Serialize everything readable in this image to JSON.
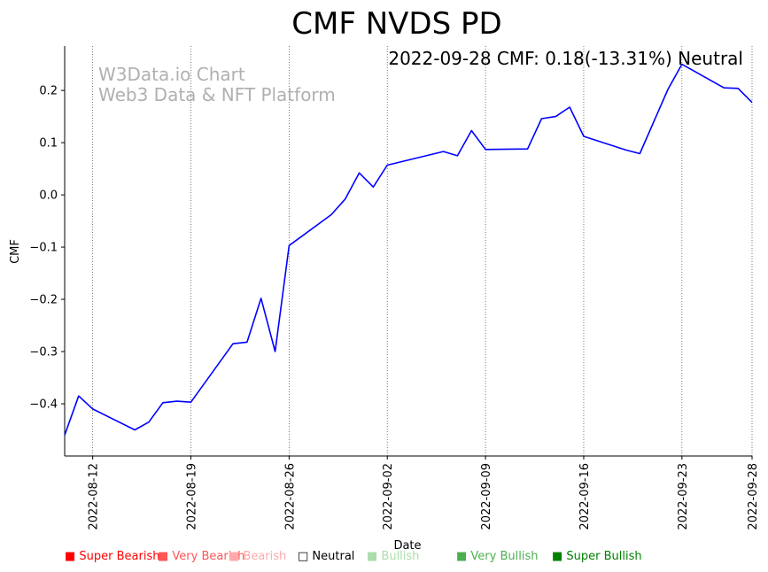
{
  "chart_data": {
    "type": "line",
    "title": "CMF NVDS PD",
    "annotation": "2022-09-28 CMF: 0.18(-13.31%) Neutral",
    "watermark": [
      "W3Data.io Chart",
      "Web3 Data & NFT Platform"
    ],
    "xlabel": "Date",
    "ylabel": "CMF",
    "ylim": [
      -0.5,
      0.285
    ],
    "xlim": [
      "2022-08-10",
      "2022-09-28"
    ],
    "grid": "vertical dotted at x ticks",
    "x_ticks": [
      "2022-08-12",
      "2022-08-19",
      "2022-08-26",
      "2022-09-02",
      "2022-09-09",
      "2022-09-16",
      "2022-09-23",
      "2022-09-28"
    ],
    "y_ticks": [
      -0.4,
      -0.3,
      -0.2,
      -0.1,
      0.0,
      0.1,
      0.2
    ],
    "y_tick_labels": [
      "−0.4",
      "−0.3",
      "−0.2",
      "−0.1",
      "0.0",
      "0.1",
      "0.2"
    ],
    "series": [
      {
        "color": "#0000ff",
        "x": [
          "2022-08-10",
          "2022-08-11",
          "2022-08-12",
          "2022-08-15",
          "2022-08-16",
          "2022-08-17",
          "2022-08-18",
          "2022-08-19",
          "2022-08-22",
          "2022-08-23",
          "2022-08-24",
          "2022-08-25",
          "2022-08-26",
          "2022-08-29",
          "2022-08-30",
          "2022-08-31",
          "2022-09-01",
          "2022-09-02",
          "2022-09-06",
          "2022-09-07",
          "2022-09-08",
          "2022-09-09",
          "2022-09-12",
          "2022-09-13",
          "2022-09-14",
          "2022-09-15",
          "2022-09-16",
          "2022-09-19",
          "2022-09-20",
          "2022-09-22",
          "2022-09-23",
          "2022-09-26",
          "2022-09-27",
          "2022-09-28"
        ],
        "y": [
          -0.46,
          -0.385,
          -0.41,
          -0.45,
          -0.435,
          -0.398,
          -0.395,
          -0.397,
          -0.285,
          -0.282,
          -0.198,
          -0.3,
          -0.097,
          -0.038,
          -0.008,
          0.042,
          0.015,
          0.057,
          0.083,
          0.075,
          0.123,
          0.087,
          0.088,
          0.146,
          0.15,
          0.168,
          0.112,
          0.086,
          0.079,
          0.202,
          0.25,
          0.205,
          0.204,
          0.177
        ]
      }
    ],
    "legend": [
      {
        "label": "■ Super Bearish",
        "color": "#ff0000"
      },
      {
        "label": "■ Very Bearish",
        "color": "#ff5555"
      },
      {
        "label": "■ Bearish",
        "color": "#ffaaaa"
      },
      {
        "label": "□ Neutral",
        "color": "#000000"
      },
      {
        "label": "■ Bullish",
        "color": "#aaddaa"
      },
      {
        "label": "■ Very Bullish",
        "color": "#4caf50"
      },
      {
        "label": "■ Super Bullish",
        "color": "#008000"
      }
    ]
  }
}
